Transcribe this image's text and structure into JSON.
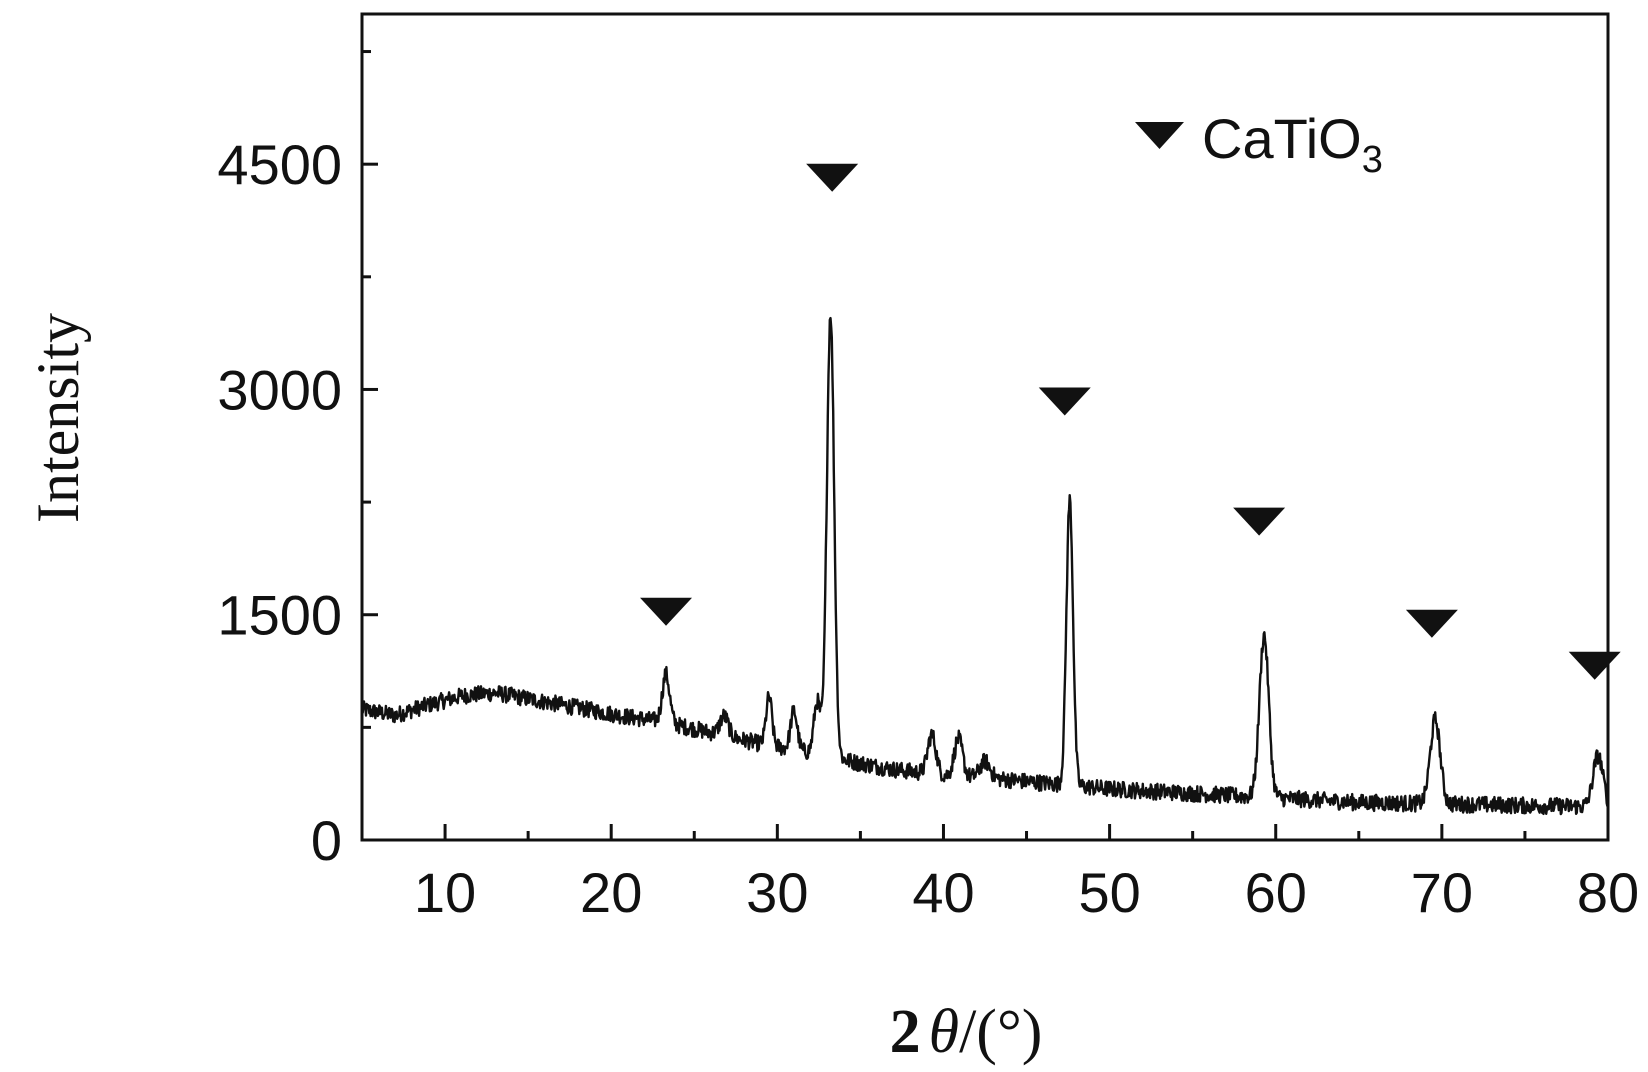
{
  "chart_data": {
    "type": "line",
    "xlabel": "2θ/(°)",
    "xlabel_parts": {
      "two": "2",
      "theta": "θ",
      "rest": "/(°)"
    },
    "ylabel": "Intensity",
    "xlim": [
      5,
      80
    ],
    "ylim": [
      0,
      5500
    ],
    "xticks": [
      10,
      20,
      30,
      40,
      50,
      60,
      70,
      80
    ],
    "yticks": [
      0,
      1500,
      3000,
      4500
    ],
    "legend": {
      "label": "CaTiO3",
      "label_main": "CaTiO",
      "label_sub": "3",
      "placement": "top-right",
      "marker": "filled-down-triangle"
    },
    "series": [
      {
        "color": "#111111",
        "baseline": [
          [
            5,
            870
          ],
          [
            7,
            830
          ],
          [
            9,
            900
          ],
          [
            11,
            960
          ],
          [
            13,
            980
          ],
          [
            15,
            940
          ],
          [
            17,
            900
          ],
          [
            19,
            860
          ],
          [
            21,
            820
          ],
          [
            23,
            790
          ],
          [
            25,
            740
          ],
          [
            27,
            690
          ],
          [
            29,
            640
          ],
          [
            31,
            600
          ],
          [
            33,
            560
          ],
          [
            35,
            510
          ],
          [
            37,
            470
          ],
          [
            40,
            430
          ],
          [
            43,
            410
          ],
          [
            46,
            380
          ],
          [
            50,
            340
          ],
          [
            55,
            310
          ],
          [
            60,
            280
          ],
          [
            65,
            250
          ],
          [
            70,
            240
          ],
          [
            75,
            230
          ],
          [
            80,
            220
          ]
        ],
        "peaks": [
          {
            "x": 23.3,
            "height": 320,
            "width": 0.22
          },
          {
            "x": 26.8,
            "height": 130,
            "width": 0.25
          },
          {
            "x": 29.5,
            "height": 320,
            "width": 0.18
          },
          {
            "x": 31.0,
            "height": 260,
            "width": 0.2
          },
          {
            "x": 32.4,
            "height": 350,
            "width": 0.2
          },
          {
            "x": 33.2,
            "height": 2950,
            "width": 0.22
          },
          {
            "x": 39.3,
            "height": 260,
            "width": 0.25
          },
          {
            "x": 40.9,
            "height": 250,
            "width": 0.25
          },
          {
            "x": 42.5,
            "height": 110,
            "width": 0.3
          },
          {
            "x": 47.6,
            "height": 1900,
            "width": 0.2
          },
          {
            "x": 59.3,
            "height": 1080,
            "width": 0.28
          },
          {
            "x": 69.6,
            "height": 560,
            "width": 0.3
          },
          {
            "x": 79.4,
            "height": 340,
            "width": 0.3
          }
        ],
        "noise_amplitude": 55
      }
    ],
    "markers": [
      {
        "x": 23.3,
        "y": 1520
      },
      {
        "x": 33.3,
        "y": 4410
      },
      {
        "x": 47.3,
        "y": 2920
      },
      {
        "x": 59.0,
        "y": 2120
      },
      {
        "x": 69.4,
        "y": 1440
      },
      {
        "x": 79.2,
        "y": 1160
      }
    ]
  }
}
